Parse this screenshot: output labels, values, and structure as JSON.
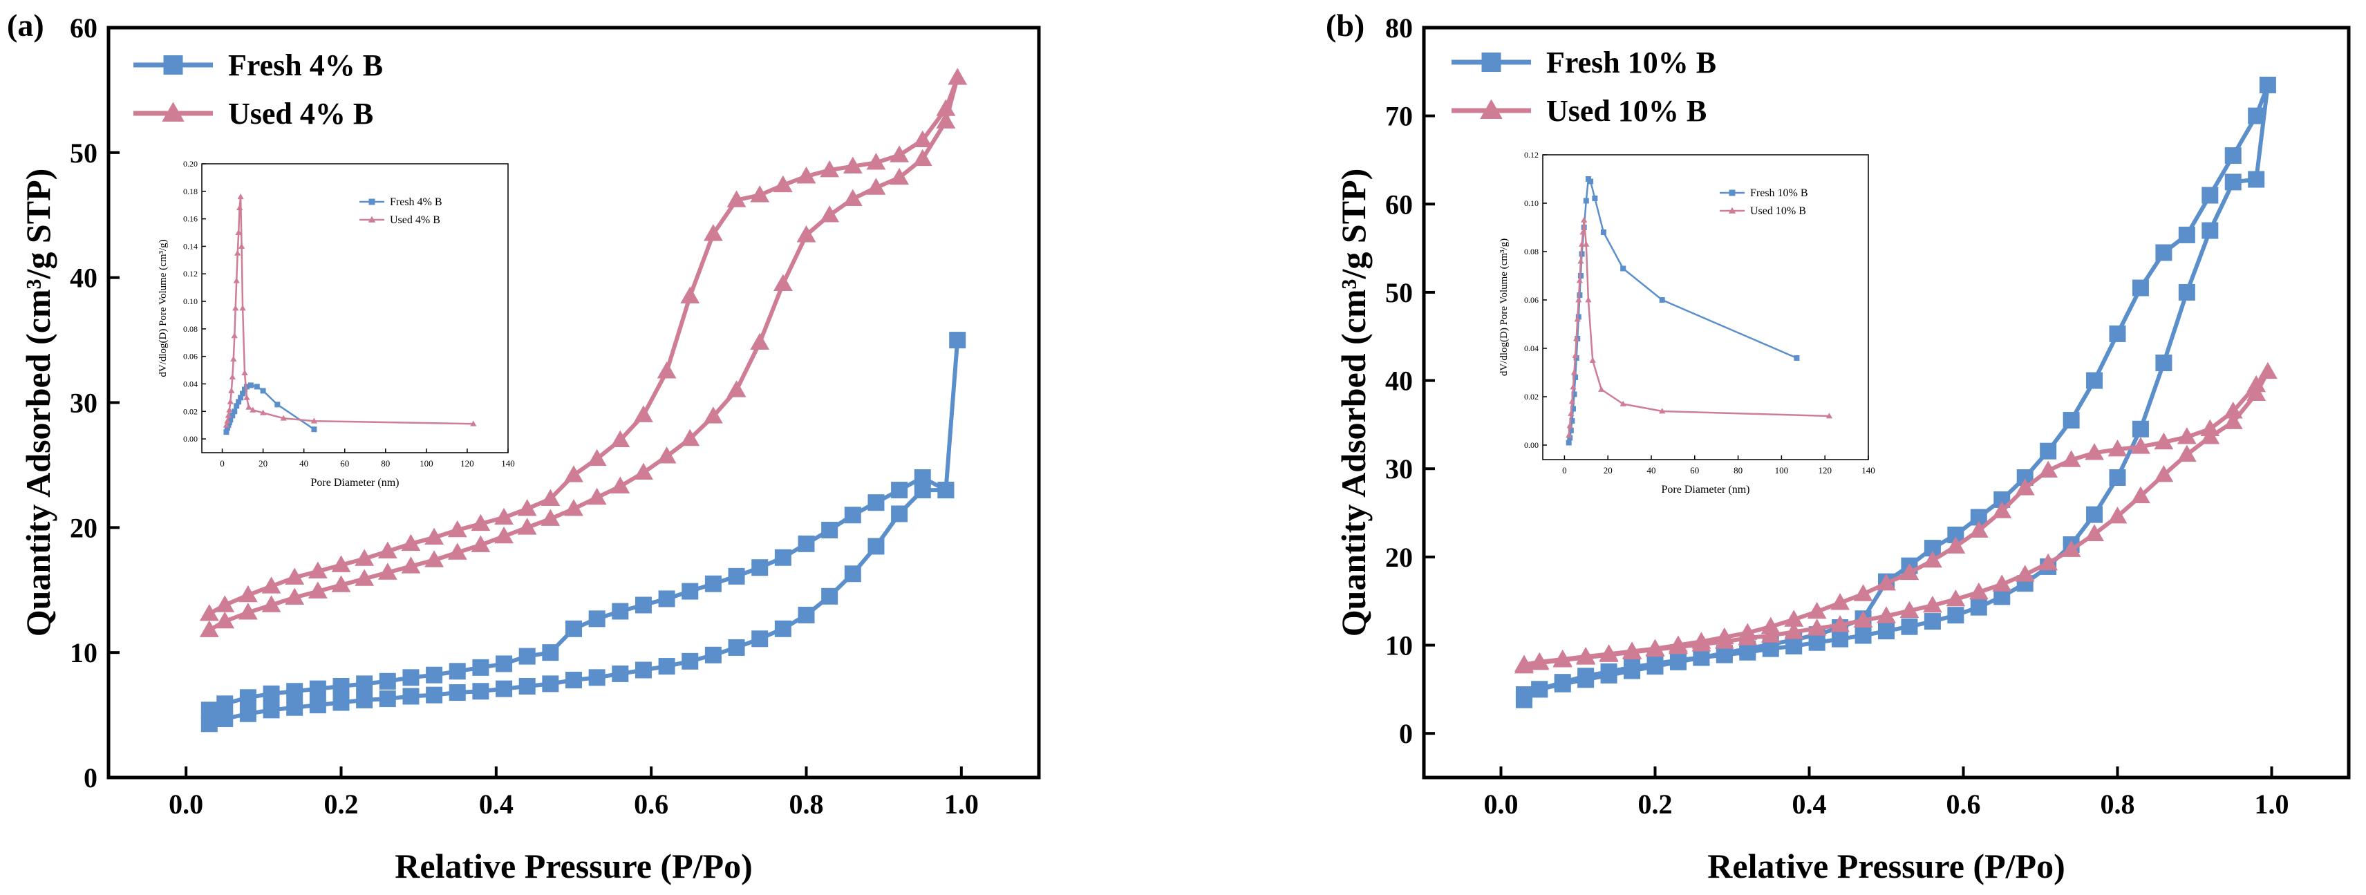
{
  "colors": {
    "fresh": "#5b8fcb",
    "used": "#cf7c95",
    "axis": "#000000"
  },
  "chart_data": [
    {
      "type": "line",
      "panel_label": "(a)",
      "xlabel": "Relative Pressure (P/Po)",
      "ylabel": "Quantity Adsorbed (cm³/g STP)",
      "xlim": [
        -0.1,
        1.1
      ],
      "ylim": [
        0,
        60
      ],
      "xticks": [
        "0.0",
        "0.2",
        "0.4",
        "0.6",
        "0.8",
        "1.0"
      ],
      "yticks": [
        "0",
        "10",
        "20",
        "30",
        "40",
        "50",
        "60"
      ],
      "legend_position": "top-left",
      "series": [
        {
          "name": "Fresh 4% B",
          "color_key": "fresh",
          "marker": "square",
          "x": [
            0.03,
            0.05,
            0.08,
            0.11,
            0.14,
            0.17,
            0.2,
            0.23,
            0.26,
            0.29,
            0.32,
            0.35,
            0.38,
            0.41,
            0.44,
            0.47,
            0.5,
            0.53,
            0.56,
            0.59,
            0.62,
            0.65,
            0.68,
            0.71,
            0.74,
            0.77,
            0.8,
            0.83,
            0.86,
            0.89,
            0.92,
            0.95,
            0.98,
            0.995,
            0.98,
            0.95,
            0.92,
            0.89,
            0.86,
            0.83,
            0.8,
            0.77,
            0.74,
            0.71,
            0.68,
            0.65,
            0.62,
            0.59,
            0.56,
            0.53,
            0.5,
            0.47,
            0.44,
            0.41,
            0.38,
            0.35,
            0.32,
            0.29,
            0.26,
            0.23,
            0.2,
            0.17,
            0.14,
            0.11,
            0.08,
            0.05,
            0.03
          ],
          "y": [
            4.3,
            4.7,
            5.1,
            5.4,
            5.6,
            5.8,
            6.0,
            6.2,
            6.3,
            6.5,
            6.6,
            6.8,
            6.9,
            7.1,
            7.3,
            7.5,
            7.8,
            8.0,
            8.3,
            8.6,
            8.9,
            9.3,
            9.8,
            10.4,
            11.1,
            11.9,
            13.0,
            14.5,
            16.3,
            18.5,
            21.1,
            23.0,
            23.0,
            35.0,
            23.0,
            24.0,
            23.0,
            22.0,
            21.0,
            19.8,
            18.7,
            17.6,
            16.8,
            16.1,
            15.5,
            14.9,
            14.3,
            13.8,
            13.3,
            12.7,
            11.9,
            10.0,
            9.7,
            9.1,
            8.8,
            8.5,
            8.2,
            8.0,
            7.7,
            7.5,
            7.3,
            7.1,
            6.9,
            6.7,
            6.4,
            5.9,
            5.4
          ]
        },
        {
          "name": "Used 4% B",
          "color_key": "used",
          "marker": "triangle",
          "x": [
            0.03,
            0.05,
            0.08,
            0.11,
            0.14,
            0.17,
            0.2,
            0.23,
            0.26,
            0.29,
            0.32,
            0.35,
            0.38,
            0.41,
            0.44,
            0.47,
            0.5,
            0.53,
            0.56,
            0.59,
            0.62,
            0.65,
            0.68,
            0.71,
            0.74,
            0.77,
            0.8,
            0.83,
            0.86,
            0.89,
            0.92,
            0.95,
            0.98,
            0.995,
            0.98,
            0.95,
            0.92,
            0.89,
            0.86,
            0.83,
            0.8,
            0.77,
            0.74,
            0.71,
            0.68,
            0.65,
            0.62,
            0.59,
            0.56,
            0.53,
            0.5,
            0.47,
            0.44,
            0.41,
            0.38,
            0.35,
            0.32,
            0.29,
            0.26,
            0.23,
            0.2,
            0.17,
            0.14,
            0.11,
            0.08,
            0.05,
            0.03
          ],
          "y": [
            11.8,
            12.5,
            13.2,
            13.8,
            14.4,
            14.9,
            15.4,
            15.9,
            16.4,
            16.9,
            17.4,
            18.0,
            18.6,
            19.3,
            20.0,
            20.7,
            21.5,
            22.4,
            23.3,
            24.4,
            25.7,
            27.1,
            28.9,
            31.0,
            34.8,
            39.5,
            43.4,
            45.0,
            46.3,
            47.2,
            48.0,
            49.5,
            52.5,
            56.0,
            53.5,
            51.0,
            49.8,
            49.2,
            48.9,
            48.6,
            48.1,
            47.4,
            46.6,
            46.2,
            43.5,
            38.5,
            32.5,
            29.0,
            27.0,
            25.5,
            24.2,
            22.3,
            21.5,
            20.8,
            20.3,
            19.8,
            19.2,
            18.7,
            18.1,
            17.5,
            17.0,
            16.5,
            16.0,
            15.3,
            14.6,
            13.8,
            13.1
          ]
        }
      ],
      "inset": {
        "xlabel": "Pore Diameter (nm)",
        "ylabel": "dV/dlog(D) Pore Volume (cm³/g)",
        "xlim": [
          -10,
          140
        ],
        "ylim": [
          -0.01,
          0.2
        ],
        "xticks": [
          "0",
          "20",
          "40",
          "60",
          "80",
          "100",
          "120",
          "140"
        ],
        "yticks": [
          "0.00",
          "0.02",
          "0.04",
          "0.06",
          "0.08",
          "0.10",
          "0.12",
          "0.14",
          "0.16",
          "0.18",
          "0.20"
        ],
        "legend_position": "top-right",
        "series": [
          {
            "name": "Fresh 4% B",
            "color_key": "fresh",
            "marker": "square",
            "x": [
              2.0,
              2.5,
              3.0,
              3.5,
              4.0,
              5.0,
              6.0,
              7.0,
              8.0,
              9.0,
              10.0,
              11.0,
              12.0,
              14.0,
              17.0,
              20.0,
              27.0,
              45.0
            ],
            "y": [
              0.005,
              0.008,
              0.01,
              0.012,
              0.014,
              0.017,
              0.02,
              0.024,
              0.027,
              0.03,
              0.033,
              0.036,
              0.038,
              0.039,
              0.038,
              0.035,
              0.025,
              0.007
            ]
          },
          {
            "name": "Used 4% B",
            "color_key": "used",
            "marker": "triangle",
            "x": [
              2.0,
              2.5,
              3.0,
              3.5,
              4.0,
              4.5,
              5.0,
              5.5,
              6.0,
              6.5,
              7.0,
              7.5,
              8.0,
              8.5,
              9.0,
              9.5,
              10.0,
              11.0,
              12.0,
              13.0,
              15.0,
              20.0,
              30.0,
              45.0,
              123.0
            ],
            "y": [
              0.01,
              0.013,
              0.017,
              0.021,
              0.027,
              0.035,
              0.045,
              0.058,
              0.075,
              0.095,
              0.115,
              0.135,
              0.15,
              0.168,
              0.176,
              0.14,
              0.095,
              0.048,
              0.03,
              0.023,
              0.021,
              0.019,
              0.015,
              0.013,
              0.011
            ]
          }
        ]
      }
    },
    {
      "type": "line",
      "panel_label": "(b)",
      "xlabel": "Relative Pressure (P/Po)",
      "ylabel": "Quantity Adsorbed (cm³/g STP)",
      "xlim": [
        -0.1,
        1.1
      ],
      "ylim": [
        -5,
        80
      ],
      "xticks": [
        "0.0",
        "0.2",
        "0.4",
        "0.6",
        "0.8",
        "1.0"
      ],
      "yticks": [
        "0",
        "10",
        "20",
        "30",
        "40",
        "50",
        "60",
        "70",
        "80"
      ],
      "legend_position": "top-left",
      "series": [
        {
          "name": "Fresh 10% B",
          "color_key": "fresh",
          "marker": "square",
          "x": [
            0.03,
            0.05,
            0.08,
            0.11,
            0.14,
            0.17,
            0.2,
            0.23,
            0.26,
            0.29,
            0.32,
            0.35,
            0.38,
            0.41,
            0.44,
            0.47,
            0.5,
            0.53,
            0.56,
            0.59,
            0.62,
            0.65,
            0.68,
            0.71,
            0.74,
            0.77,
            0.8,
            0.83,
            0.86,
            0.89,
            0.92,
            0.95,
            0.98,
            0.995,
            0.98,
            0.95,
            0.92,
            0.89,
            0.86,
            0.83,
            0.8,
            0.77,
            0.74,
            0.71,
            0.68,
            0.65,
            0.62,
            0.59,
            0.56,
            0.53,
            0.5,
            0.47,
            0.44,
            0.41,
            0.38,
            0.35,
            0.32,
            0.29,
            0.26,
            0.23,
            0.2,
            0.17,
            0.14,
            0.11,
            0.08,
            0.05,
            0.03
          ],
          "y": [
            3.8,
            5.0,
            5.8,
            6.5,
            7.0,
            7.5,
            7.9,
            8.3,
            8.6,
            8.9,
            9.2,
            9.6,
            9.9,
            10.3,
            10.7,
            11.1,
            11.6,
            12.1,
            12.7,
            13.4,
            14.3,
            15.5,
            17.0,
            18.9,
            21.4,
            24.8,
            29.0,
            34.5,
            42.0,
            50.0,
            57.0,
            62.5,
            62.8,
            73.5,
            70.0,
            65.5,
            61.0,
            56.5,
            54.5,
            50.5,
            45.3,
            40.0,
            35.5,
            32.0,
            29.0,
            26.5,
            24.5,
            22.5,
            21.0,
            19.0,
            17.2,
            13.0,
            12.0,
            11.2,
            10.6,
            10.1,
            9.6,
            9.1,
            8.6,
            8.1,
            7.6,
            7.1,
            6.6,
            6.1,
            5.6,
            5.0,
            4.4
          ]
        },
        {
          "name": "Used 10% B",
          "color_key": "used",
          "marker": "triangle",
          "x": [
            0.03,
            0.05,
            0.08,
            0.11,
            0.14,
            0.17,
            0.2,
            0.23,
            0.26,
            0.29,
            0.32,
            0.35,
            0.38,
            0.41,
            0.44,
            0.47,
            0.5,
            0.53,
            0.56,
            0.59,
            0.62,
            0.65,
            0.68,
            0.71,
            0.74,
            0.77,
            0.8,
            0.83,
            0.86,
            0.89,
            0.92,
            0.95,
            0.98,
            0.995,
            0.98,
            0.95,
            0.92,
            0.89,
            0.86,
            0.83,
            0.8,
            0.77,
            0.74,
            0.71,
            0.68,
            0.65,
            0.62,
            0.59,
            0.56,
            0.53,
            0.5,
            0.47,
            0.44,
            0.41,
            0.38,
            0.35,
            0.32,
            0.29,
            0.26,
            0.23,
            0.2,
            0.17,
            0.14,
            0.11,
            0.08,
            0.05,
            0.03
          ],
          "y": [
            7.6,
            8.0,
            8.3,
            8.6,
            8.9,
            9.2,
            9.5,
            9.8,
            10.1,
            10.4,
            10.8,
            11.1,
            11.5,
            11.9,
            12.3,
            12.8,
            13.3,
            13.9,
            14.5,
            15.2,
            16.0,
            16.9,
            18.0,
            19.3,
            20.8,
            22.6,
            24.6,
            26.9,
            29.3,
            31.6,
            33.6,
            35.3,
            38.5,
            41.0,
            39.5,
            36.5,
            34.5,
            33.6,
            33.0,
            32.5,
            32.2,
            31.8,
            31.0,
            29.8,
            27.8,
            25.2,
            23.0,
            21.2,
            19.6,
            18.2,
            17.0,
            15.8,
            14.8,
            13.8,
            12.9,
            12.1,
            11.4,
            10.9,
            10.4,
            10.0,
            9.6,
            9.3,
            9.0,
            8.7,
            8.4,
            8.1,
            7.8
          ]
        }
      ],
      "inset": {
        "xlabel": "Pore Diameter (nm)",
        "ylabel": "dV/dlog(D) Pore Volume (cm³/g)",
        "xlim": [
          -10,
          140
        ],
        "ylim": [
          -0.006,
          0.12
        ],
        "xticks": [
          "0",
          "20",
          "40",
          "60",
          "80",
          "100",
          "120",
          "140"
        ],
        "yticks": [
          "0.00",
          "0.02",
          "0.04",
          "0.06",
          "0.08",
          "0.10",
          "0.12"
        ],
        "legend_position": "top-right",
        "series": [
          {
            "name": "Fresh 10% B",
            "color_key": "fresh",
            "marker": "square",
            "x": [
              2.0,
              2.5,
              3.0,
              3.5,
              4.0,
              4.5,
              5.0,
              5.5,
              6.0,
              6.5,
              7.0,
              7.5,
              8.0,
              9.0,
              10.0,
              11.0,
              12.0,
              14.0,
              18.0,
              27.0,
              45.0,
              107.0
            ],
            "y": [
              0.001,
              0.003,
              0.006,
              0.01,
              0.015,
              0.021,
              0.028,
              0.036,
              0.044,
              0.053,
              0.062,
              0.07,
              0.079,
              0.09,
              0.101,
              0.11,
              0.109,
              0.102,
              0.088,
              0.073,
              0.06,
              0.036
            ]
          },
          {
            "name": "Used 10% B",
            "color_key": "used",
            "marker": "triangle",
            "x": [
              2.0,
              2.5,
              3.0,
              3.5,
              4.0,
              4.5,
              5.0,
              5.5,
              6.0,
              6.5,
              7.0,
              7.5,
              8.0,
              8.5,
              9.0,
              10.0,
              11.0,
              13.0,
              17.0,
              27.0,
              45.0,
              122.0
            ],
            "y": [
              0.004,
              0.008,
              0.013,
              0.018,
              0.024,
              0.03,
              0.037,
              0.044,
              0.052,
              0.06,
              0.068,
              0.076,
              0.083,
              0.088,
              0.093,
              0.083,
              0.06,
              0.035,
              0.023,
              0.017,
              0.014,
              0.012
            ]
          }
        ]
      }
    }
  ]
}
